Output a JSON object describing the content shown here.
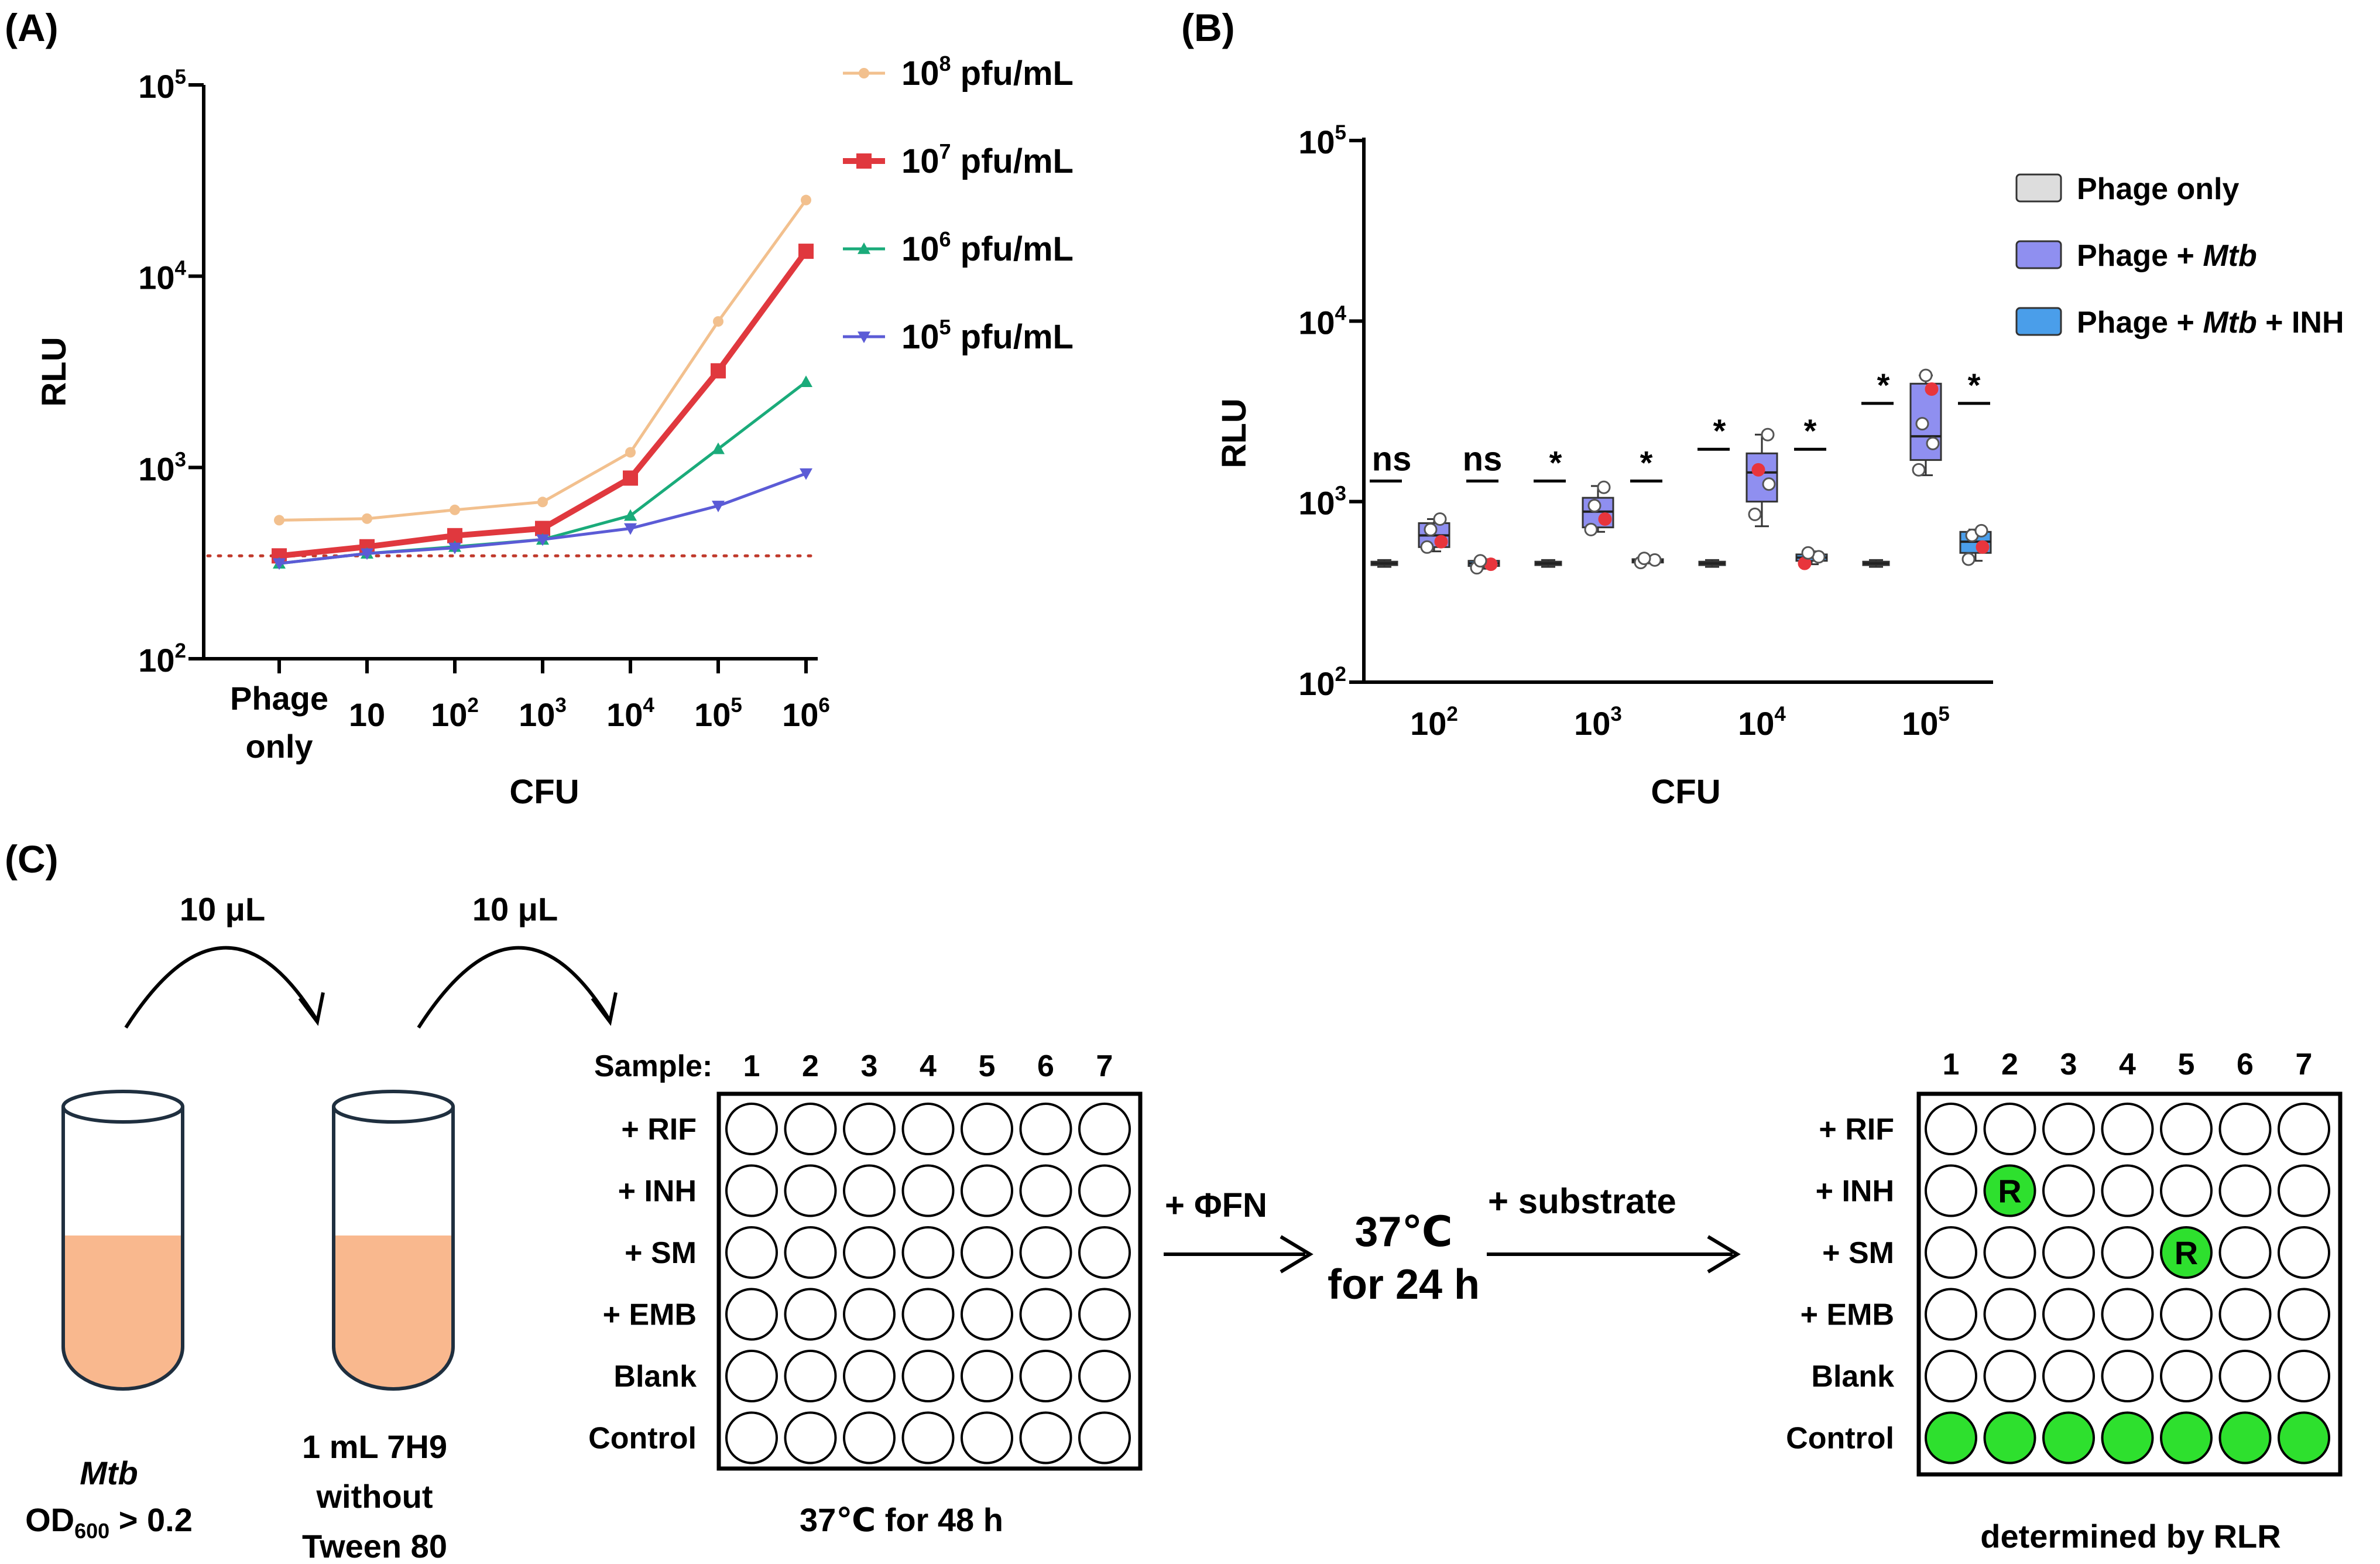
{
  "panels": {
    "a": {
      "label": "(A)"
    },
    "b": {
      "label": "(B)"
    },
    "c": {
      "label": "(C)"
    }
  },
  "chart_data": [
    {
      "type": "line",
      "panel": "(A)",
      "xlabel": "CFU",
      "ylabel": "RLU",
      "yscale": "log",
      "ylim": [
        100,
        100000
      ],
      "y_ticks": [
        {
          "base": "10",
          "exp": "2"
        },
        {
          "base": "10",
          "exp": "3"
        },
        {
          "base": "10",
          "exp": "4"
        },
        {
          "base": "10",
          "exp": "5"
        }
      ],
      "categories": [
        {
          "lines": [
            "Phage",
            "only"
          ]
        },
        {
          "base": "10",
          "exp": ""
        },
        {
          "base": "10",
          "exp": "2"
        },
        {
          "base": "10",
          "exp": "3"
        },
        {
          "base": "10",
          "exp": "4"
        },
        {
          "base": "10",
          "exp": "5"
        },
        {
          "base": "10",
          "exp": "6"
        }
      ],
      "threshold": {
        "value": 345,
        "color": "#c0392b",
        "style": "dotted"
      },
      "series": [
        {
          "name": "10⁸ pfu/mL",
          "base": "10",
          "exp": "8",
          "unit": "pfu/mL",
          "color": "#f2c08e",
          "marker": "circle",
          "values": [
            530,
            540,
            600,
            660,
            1200,
            5800,
            25000
          ]
        },
        {
          "name": "10⁷ pfu/mL",
          "base": "10",
          "exp": "7",
          "unit": "pfu/mL",
          "color": "#e0383e",
          "marker": "square",
          "values": [
            345,
            385,
            440,
            480,
            880,
            3200,
            13500
          ]
        },
        {
          "name": "10⁶ pfu/mL",
          "base": "10",
          "exp": "6",
          "unit": "pfu/mL",
          "color": "#1aab7a",
          "marker": "triangle-up",
          "values": [
            315,
            355,
            385,
            420,
            560,
            1250,
            2800
          ]
        },
        {
          "name": "10⁵ pfu/mL",
          "base": "10",
          "exp": "5",
          "unit": "pfu/mL",
          "color": "#5b5bd6",
          "marker": "triangle-down",
          "values": [
            315,
            355,
            380,
            420,
            480,
            630,
            930
          ]
        }
      ]
    },
    {
      "type": "box",
      "panel": "(B)",
      "xlabel": "CFU",
      "ylabel": "RLU",
      "yscale": "log",
      "ylim": [
        100,
        100000
      ],
      "y_ticks": [
        {
          "base": "10",
          "exp": "2"
        },
        {
          "base": "10",
          "exp": "3"
        },
        {
          "base": "10",
          "exp": "4"
        },
        {
          "base": "10",
          "exp": "5"
        }
      ],
      "groups": [
        {
          "base": "10",
          "exp": "2",
          "significance": [
            "ns",
            "ns"
          ],
          "boxes": [
            {
              "series": "Phage only",
              "min": 435,
              "q1": 445,
              "median": 455,
              "q3": 465,
              "max": 475,
              "points": []
            },
            {
              "series": "Phage + Mtb",
              "min": 530,
              "q1": 560,
              "median": 650,
              "q3": 760,
              "max": 800,
              "points": [
                {
                  "v": 560,
                  "hl": false
                },
                {
                  "v": 600,
                  "hl": true
                },
                {
                  "v": 700,
                  "hl": false
                },
                {
                  "v": 800,
                  "hl": false
                }
              ]
            },
            {
              "series": "Phage + Mtb + INH",
              "min": 425,
              "q1": 440,
              "median": 455,
              "q3": 470,
              "max": 480,
              "points": [
                {
                  "v": 430,
                  "hl": false
                },
                {
                  "v": 450,
                  "hl": true
                },
                {
                  "v": 470,
                  "hl": false
                }
              ]
            }
          ]
        },
        {
          "base": "10",
          "exp": "3",
          "significance": [
            "*",
            "*"
          ],
          "boxes": [
            {
              "series": "Phage only",
              "min": 435,
              "q1": 445,
              "median": 455,
              "q3": 465,
              "max": 475,
              "points": []
            },
            {
              "series": "Phage + Mtb",
              "min": 680,
              "q1": 720,
              "median": 880,
              "q3": 1050,
              "max": 1220,
              "points": [
                {
                  "v": 700,
                  "hl": false
                },
                {
                  "v": 800,
                  "hl": true
                },
                {
                  "v": 950,
                  "hl": false
                },
                {
                  "v": 1200,
                  "hl": false
                }
              ]
            },
            {
              "series": "Phage + Mtb + INH",
              "min": 455,
              "q1": 460,
              "median": 470,
              "q3": 480,
              "max": 490,
              "points": [
                {
                  "v": 460,
                  "hl": false
                },
                {
                  "v": 475,
                  "hl": false
                },
                {
                  "v": 485,
                  "hl": false
                }
              ]
            }
          ]
        },
        {
          "base": "10",
          "exp": "4",
          "significance": [
            "*",
            "*"
          ],
          "boxes": [
            {
              "series": "Phage only",
              "min": 435,
              "q1": 445,
              "median": 455,
              "q3": 465,
              "max": 475,
              "points": []
            },
            {
              "series": "Phage + Mtb",
              "min": 730,
              "q1": 1000,
              "median": 1450,
              "q3": 1850,
              "max": 2350,
              "points": [
                {
                  "v": 850,
                  "hl": false
                },
                {
                  "v": 1250,
                  "hl": false
                },
                {
                  "v": 1500,
                  "hl": true
                },
                {
                  "v": 2350,
                  "hl": false
                }
              ]
            },
            {
              "series": "Phage + Mtb + INH",
              "min": 450,
              "q1": 470,
              "median": 490,
              "q3": 510,
              "max": 530,
              "points": [
                {
                  "v": 455,
                  "hl": true
                },
                {
                  "v": 495,
                  "hl": false
                },
                {
                  "v": 520,
                  "hl": false
                }
              ]
            }
          ]
        },
        {
          "base": "10",
          "exp": "5",
          "significance": [
            "*",
            "*"
          ],
          "boxes": [
            {
              "series": "Phage only",
              "min": 435,
              "q1": 445,
              "median": 455,
              "q3": 465,
              "max": 475,
              "points": []
            },
            {
              "series": "Phage + Mtb",
              "min": 1400,
              "q1": 1700,
              "median": 2300,
              "q3": 4500,
              "max": 5000,
              "points": [
                {
                  "v": 1500,
                  "hl": false
                },
                {
                  "v": 2100,
                  "hl": false
                },
                {
                  "v": 2700,
                  "hl": false
                },
                {
                  "v": 4200,
                  "hl": true
                },
                {
                  "v": 5000,
                  "hl": false
                }
              ]
            },
            {
              "series": "Phage + Mtb + INH",
              "min": 470,
              "q1": 520,
              "median": 600,
              "q3": 680,
              "max": 700,
              "points": [
                {
                  "v": 480,
                  "hl": false
                },
                {
                  "v": 560,
                  "hl": true
                },
                {
                  "v": 650,
                  "hl": false
                },
                {
                  "v": 690,
                  "hl": false
                }
              ]
            }
          ]
        }
      ],
      "legend": [
        {
          "parts": [
            {
              "t": "Phage only",
              "i": false
            }
          ],
          "color": "#dddddd"
        },
        {
          "parts": [
            {
              "t": "Phage + ",
              "i": false
            },
            {
              "t": "Mtb",
              "i": true
            }
          ],
          "color": "#8f8ff0"
        },
        {
          "parts": [
            {
              "t": "Phage + ",
              "i": false
            },
            {
              "t": "Mtb",
              "i": true
            },
            {
              "t": " + INH",
              "i": false
            }
          ],
          "color": "#4a9eea"
        }
      ],
      "highlight_color": "#e8353c"
    }
  ],
  "diagram": {
    "transfer_1": "10 μL",
    "transfer_2": "10 μL",
    "tube1": {
      "line1": "Mtb",
      "od_main": "OD",
      "od_sub": "600",
      "od_rest": " > 0.2"
    },
    "tube2": {
      "lines": [
        "1 mL 7H9",
        "without",
        "Tween 80"
      ]
    },
    "tube_fill": "#f9b88e",
    "plate1": {
      "sample_label": "Sample:",
      "columns": [
        "1",
        "2",
        "3",
        "4",
        "5",
        "6",
        "7"
      ],
      "rows": [
        "+ RIF",
        "+ INH",
        "+ SM",
        "+ EMB",
        "Blank",
        "Control"
      ],
      "caption": "37℃ for 48 h"
    },
    "step1_label": "+ ΦFN",
    "incubation": [
      "37℃",
      "for 24 h"
    ],
    "step2_label": "+ substrate",
    "plate2": {
      "columns": [
        "1",
        "2",
        "3",
        "4",
        "5",
        "6",
        "7"
      ],
      "rows": [
        "+ RIF",
        "+ INH",
        "+ SM",
        "+ EMB",
        "Blank",
        "Control"
      ],
      "caption": "determined by RLR",
      "well_color": "#2ee02e",
      "resistant_wells": [
        {
          "row": 1,
          "col": 1,
          "label": "R"
        },
        {
          "row": 2,
          "col": 4,
          "label": "R"
        }
      ],
      "positive_row": 5
    }
  }
}
